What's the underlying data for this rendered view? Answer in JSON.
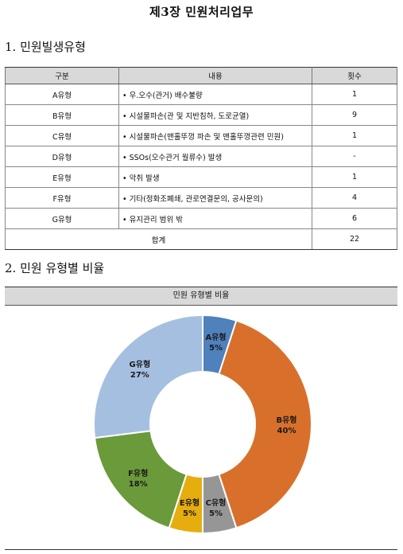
{
  "title": "제3장  민원처리업무",
  "section1": "1. 민원빌생유형",
  "section2": "2. 민원 유형별 비율",
  "table": {
    "headers": [
      "구분",
      "내용",
      "횟수"
    ],
    "rows": [
      {
        "type": "A유형",
        "content": "우.오수(관거) 배수불량",
        "count": "1"
      },
      {
        "type": "B유형",
        "content": "시설물파손(관 및 지반침하, 도로균열)",
        "count": "9"
      },
      {
        "type": "C유형",
        "content": "시설물파손(맨홀뚜껑 파손 및 맨홀뚜껑관련 민원)",
        "count": "1"
      },
      {
        "type": "D유형",
        "content": "SSOs(오수관거 월류수) 발생",
        "count": "-"
      },
      {
        "type": "E유형",
        "content": "악취 발생",
        "count": "1"
      },
      {
        "type": "F유형",
        "content": "기타(정화조폐쇄, 관로연결문의, 공사문의)",
        "count": "4"
      },
      {
        "type": "G유형",
        "content": "유지관리 범위 밖",
        "count": "6"
      }
    ],
    "total_label": "합계",
    "total_count": "22"
  },
  "chart_data": {
    "type": "pie",
    "donut": true,
    "title": "민원 유형별 비율",
    "categories": [
      "A유형",
      "B유형",
      "C유형",
      "E유형",
      "F유형",
      "G유형"
    ],
    "values": [
      5,
      40,
      5,
      5,
      18,
      27
    ],
    "value_labels": [
      "5%",
      "40%",
      "5%",
      "5%",
      "18%",
      "27%"
    ],
    "colors": [
      "#4f81bd",
      "#d8702b",
      "#969696",
      "#e6ad0f",
      "#6a9a3a",
      "#a5bfe0"
    ]
  }
}
